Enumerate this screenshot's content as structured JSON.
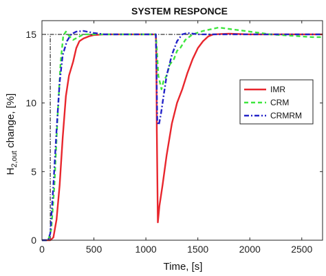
{
  "chart_data": {
    "type": "line",
    "title": "SYSTEM RESPONCE",
    "xlabel": "Time, [s]",
    "ylabel_main": "H",
    "ylabel_sub": "2,out",
    "ylabel_rest": " change, [%]",
    "xlim": [
      0,
      2700
    ],
    "ylim": [
      0,
      16
    ],
    "xticks": [
      0,
      500,
      1000,
      1500,
      2000,
      2500
    ],
    "yticks": [
      0,
      5,
      10,
      15
    ],
    "grid": false,
    "legend_position": "right",
    "reference": {
      "setpoint": 15,
      "step_times": [
        80,
        1100
      ]
    },
    "series": [
      {
        "name": "IMR",
        "color": "#e8262d",
        "dash": "solid",
        "points": [
          [
            0,
            0
          ],
          [
            80,
            0
          ],
          [
            110,
            0.2
          ],
          [
            140,
            1.5
          ],
          [
            170,
            4
          ],
          [
            200,
            7.5
          ],
          [
            230,
            10.5
          ],
          [
            260,
            12
          ],
          [
            300,
            13
          ],
          [
            330,
            14
          ],
          [
            360,
            14.5
          ],
          [
            400,
            14.7
          ],
          [
            450,
            14.85
          ],
          [
            500,
            14.95
          ],
          [
            600,
            15
          ],
          [
            1095,
            15
          ],
          [
            1100,
            14
          ],
          [
            1105,
            8
          ],
          [
            1115,
            1.3
          ],
          [
            1130,
            2.5
          ],
          [
            1160,
            4
          ],
          [
            1200,
            6.2
          ],
          [
            1250,
            8.5
          ],
          [
            1300,
            10
          ],
          [
            1350,
            11
          ],
          [
            1400,
            12.2
          ],
          [
            1450,
            13.2
          ],
          [
            1500,
            14
          ],
          [
            1550,
            14.5
          ],
          [
            1600,
            14.85
          ],
          [
            1650,
            15
          ],
          [
            1800,
            15.05
          ],
          [
            2000,
            15
          ],
          [
            2700,
            15
          ]
        ]
      },
      {
        "name": "CRM",
        "color": "#3ee63e",
        "dash": "6,4",
        "points": [
          [
            0,
            0
          ],
          [
            60,
            0
          ],
          [
            90,
            0.8
          ],
          [
            120,
            4
          ],
          [
            150,
            9
          ],
          [
            180,
            13
          ],
          [
            205,
            14.9
          ],
          [
            230,
            15.2
          ],
          [
            260,
            14.9
          ],
          [
            300,
            14.6
          ],
          [
            350,
            14.8
          ],
          [
            400,
            15
          ],
          [
            600,
            15
          ],
          [
            1095,
            15
          ],
          [
            1105,
            14
          ],
          [
            1120,
            12
          ],
          [
            1150,
            11
          ],
          [
            1170,
            11.6
          ],
          [
            1200,
            12
          ],
          [
            1230,
            12.8
          ],
          [
            1270,
            13.2
          ],
          [
            1300,
            13.8
          ],
          [
            1330,
            14
          ],
          [
            1380,
            14.6
          ],
          [
            1450,
            15
          ],
          [
            1550,
            15.25
          ],
          [
            1700,
            15.5
          ],
          [
            1800,
            15.4
          ],
          [
            2000,
            15.2
          ],
          [
            2200,
            15
          ],
          [
            2400,
            14.9
          ],
          [
            2600,
            14.8
          ],
          [
            2700,
            14.8
          ]
        ]
      },
      {
        "name": "CRMRM",
        "color": "#2323c8",
        "dash": "7,3,2,3",
        "points": [
          [
            0,
            0
          ],
          [
            60,
            0
          ],
          [
            80,
            0.5
          ],
          [
            110,
            4
          ],
          [
            140,
            8
          ],
          [
            170,
            11.5
          ],
          [
            200,
            13.5
          ],
          [
            240,
            14.5
          ],
          [
            280,
            15
          ],
          [
            330,
            15.2
          ],
          [
            400,
            15.25
          ],
          [
            500,
            15.1
          ],
          [
            600,
            15
          ],
          [
            1095,
            15
          ],
          [
            1102,
            12.5
          ],
          [
            1110,
            8.6
          ],
          [
            1125,
            8.4
          ],
          [
            1145,
            9.2
          ],
          [
            1170,
            10.5
          ],
          [
            1200,
            12
          ],
          [
            1250,
            13.5
          ],
          [
            1300,
            14.5
          ],
          [
            1350,
            15
          ],
          [
            1400,
            15.1
          ],
          [
            1500,
            15
          ],
          [
            2700,
            15
          ]
        ]
      }
    ]
  }
}
